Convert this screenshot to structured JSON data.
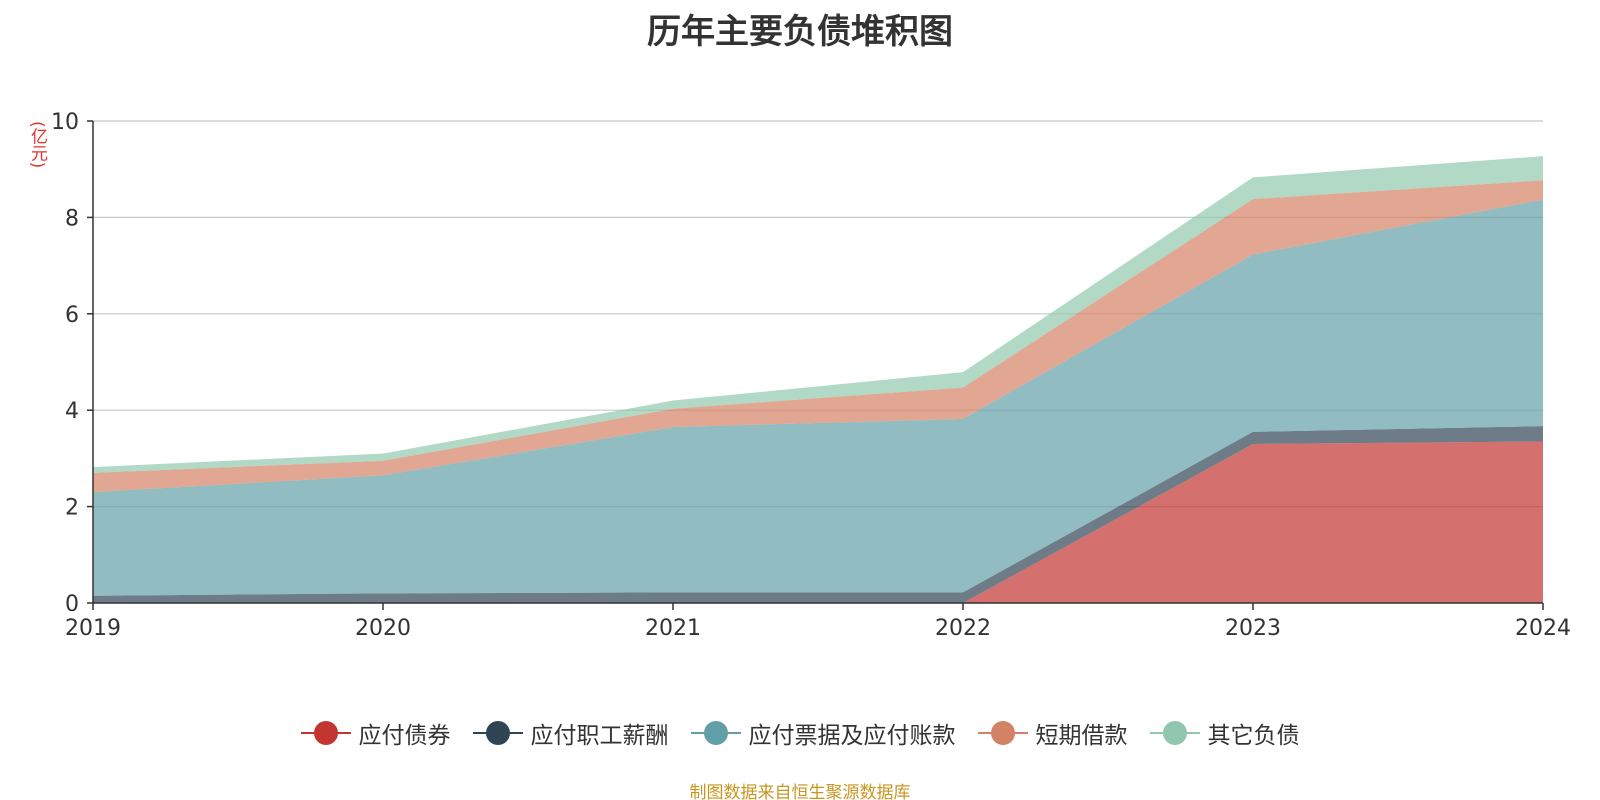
{
  "chart_data": {
    "type": "area",
    "stacked": true,
    "title": "历年主要负债堆积图",
    "unit_label": "(亿元)",
    "categories": [
      "2019",
      "2020",
      "2021",
      "2022",
      "2023",
      "2024"
    ],
    "ylim": [
      0,
      10
    ],
    "yticks": [
      0,
      2,
      4,
      6,
      8,
      10
    ],
    "grid": true,
    "legend_position": "bottom",
    "series": [
      {
        "name": "应付债券",
        "color": "#c23531",
        "values": [
          0,
          0,
          0,
          0,
          3.3,
          3.35
        ]
      },
      {
        "name": "应付职工薪酬",
        "color": "#2f4554",
        "values": [
          0.15,
          0.2,
          0.22,
          0.22,
          0.25,
          0.32
        ]
      },
      {
        "name": "应付票据及应付账款",
        "color": "#61a0a8",
        "values": [
          2.15,
          2.45,
          3.43,
          3.6,
          3.68,
          4.7
        ]
      },
      {
        "name": "短期借款",
        "color": "#d48265",
        "values": [
          0.4,
          0.3,
          0.38,
          0.65,
          1.15,
          0.4
        ]
      },
      {
        "name": "其它负债",
        "color": "#91c7ae",
        "values": [
          0.12,
          0.15,
          0.17,
          0.32,
          0.45,
          0.5
        ]
      }
    ]
  },
  "footer": {
    "source": "制图数据来自恒生聚源数据库"
  }
}
